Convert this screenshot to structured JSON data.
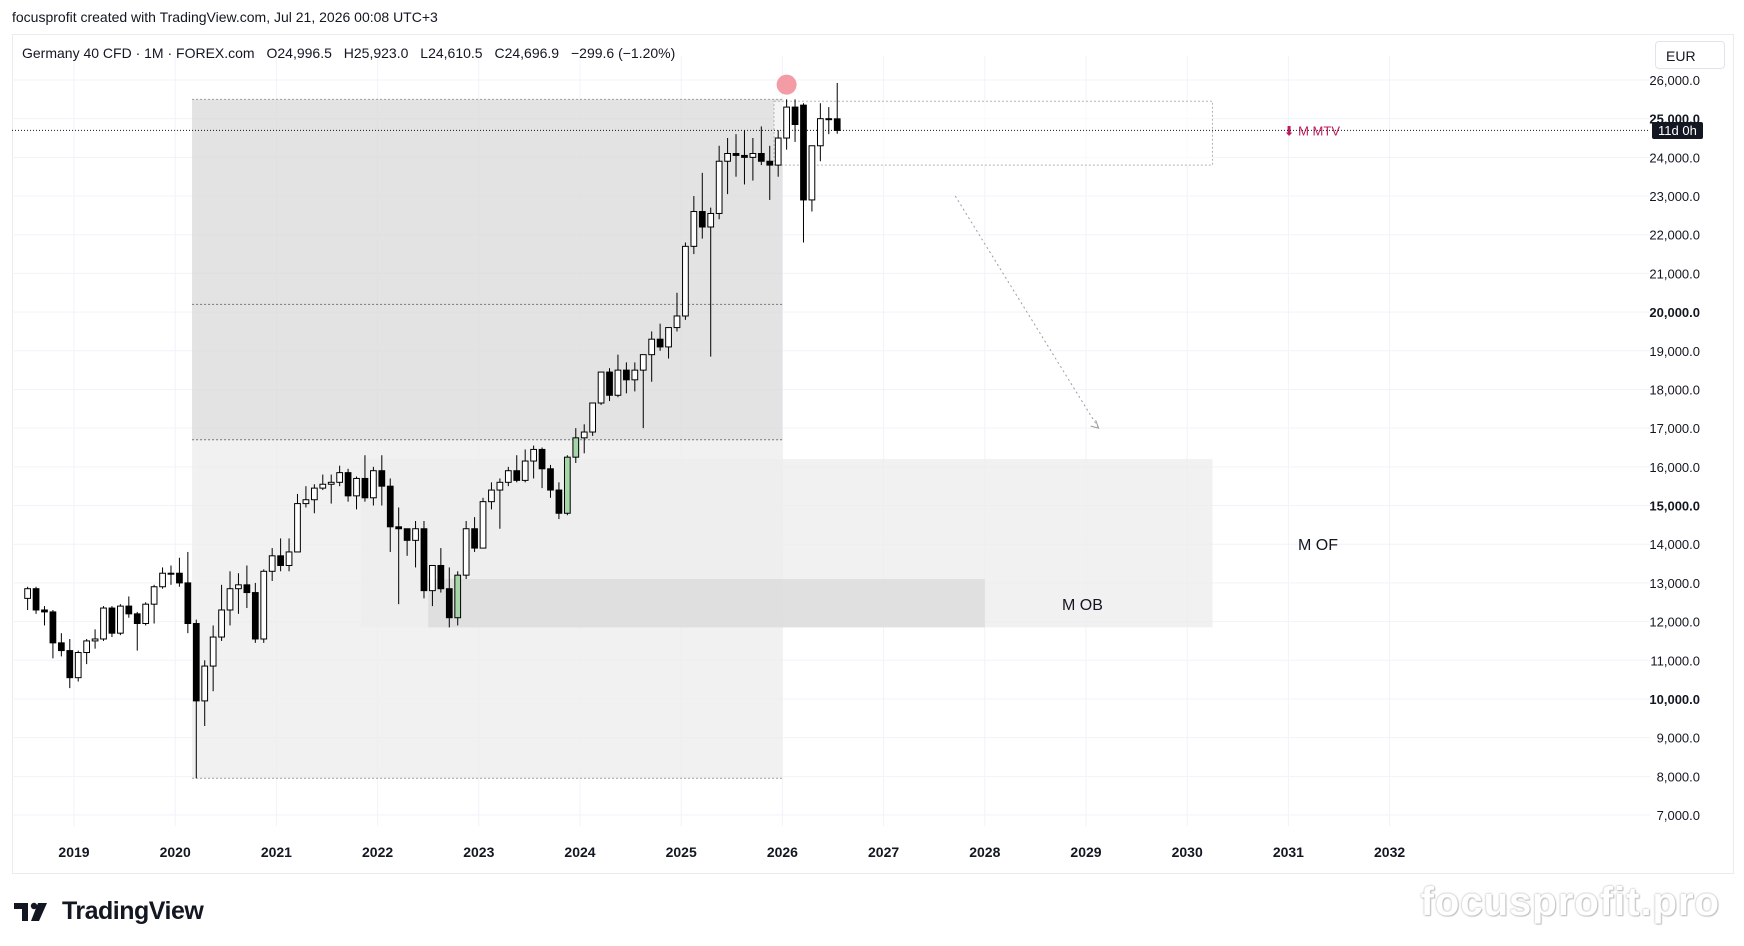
{
  "header": {
    "attribution": "focusprofit created with TradingView.com, Jul 21, 2026 00:08 UTC+3"
  },
  "legend": {
    "symbol": "Germany 40 CFD · 1M · FOREX.com",
    "open_prefix": "O",
    "open": "24,996.5",
    "high_prefix": "H",
    "high": "25,923.0",
    "low_prefix": "L",
    "low": "24,610.5",
    "close_prefix": "C",
    "close": "24,696.9",
    "change": "−299.6 (−1.20%)"
  },
  "currency_button": {
    "label": "EUR"
  },
  "countdown": {
    "label": "11d 0h"
  },
  "branding": {
    "logo_text": "TradingView",
    "watermark": "focusprofit.pro"
  },
  "colors": {
    "up_body": "#ffffff",
    "down_body": "#000000",
    "candle_border": "#000000",
    "zone_dark": "#d9d9d9",
    "zone_light": "#ececec",
    "mtv_label": "#c2185b",
    "marker": "#f28b95",
    "grid": "#f0f3fa"
  },
  "chart_data": {
    "type": "candlestick",
    "timeframe": "1M",
    "x_tick_labels": [
      "2019",
      "2020",
      "2021",
      "2022",
      "2023",
      "2024",
      "2025",
      "2026",
      "2027",
      "2028",
      "2029",
      "2030",
      "2031",
      "2032"
    ],
    "y_tick_labels": [
      "26,000.0",
      "25,000.0",
      "24,000.0",
      "23,000.0",
      "22,000.0",
      "21,000.0",
      "20,000.0",
      "19,000.0",
      "18,000.0",
      "17,000.0",
      "16,000.0",
      "15,000.0",
      "14,000.0",
      "13,000.0",
      "12,000.0",
      "11,000.0",
      "10,000.0",
      "9,000.0",
      "8,000.0",
      "7,000.0"
    ],
    "y_bold_labels": [
      "25,000.0",
      "20,000.0",
      "15,000.0",
      "10,000.0"
    ],
    "ylim": [
      6500,
      26200
    ],
    "xlim": [
      "2018-06",
      "2033-06"
    ],
    "current_price": 24696.9,
    "candles": [
      {
        "t": "2018-07",
        "o": 12600,
        "h": 12900,
        "l": 12300,
        "c": 12850
      },
      {
        "t": "2018-08",
        "o": 12850,
        "h": 12900,
        "l": 12200,
        "c": 12300
      },
      {
        "t": "2018-09",
        "o": 12300,
        "h": 12400,
        "l": 11900,
        "c": 12250
      },
      {
        "t": "2018-10",
        "o": 12250,
        "h": 12300,
        "l": 11050,
        "c": 11450
      },
      {
        "t": "2018-11",
        "o": 11450,
        "h": 11700,
        "l": 11100,
        "c": 11250
      },
      {
        "t": "2018-12",
        "o": 11250,
        "h": 11550,
        "l": 10280,
        "c": 10550
      },
      {
        "t": "2019-01",
        "o": 10550,
        "h": 11250,
        "l": 10450,
        "c": 11200
      },
      {
        "t": "2019-02",
        "o": 11200,
        "h": 11550,
        "l": 10900,
        "c": 11500
      },
      {
        "t": "2019-03",
        "o": 11500,
        "h": 11800,
        "l": 11300,
        "c": 11550
      },
      {
        "t": "2019-04",
        "o": 11550,
        "h": 12400,
        "l": 11500,
        "c": 12350
      },
      {
        "t": "2019-05",
        "o": 12350,
        "h": 12400,
        "l": 11600,
        "c": 11700
      },
      {
        "t": "2019-06",
        "o": 11700,
        "h": 12450,
        "l": 11650,
        "c": 12400
      },
      {
        "t": "2019-07",
        "o": 12400,
        "h": 12650,
        "l": 12100,
        "c": 12200
      },
      {
        "t": "2019-08",
        "o": 12200,
        "h": 12250,
        "l": 11250,
        "c": 11950
      },
      {
        "t": "2019-09",
        "o": 11950,
        "h": 12500,
        "l": 11900,
        "c": 12450
      },
      {
        "t": "2019-10",
        "o": 12450,
        "h": 12950,
        "l": 11950,
        "c": 12900
      },
      {
        "t": "2019-11",
        "o": 12900,
        "h": 13400,
        "l": 12850,
        "c": 13250
      },
      {
        "t": "2019-12",
        "o": 13250,
        "h": 13450,
        "l": 12950,
        "c": 13250
      },
      {
        "t": "2020-01",
        "o": 13250,
        "h": 13650,
        "l": 12900,
        "c": 13000
      },
      {
        "t": "2020-02",
        "o": 13000,
        "h": 13800,
        "l": 11700,
        "c": 11950
      },
      {
        "t": "2020-03",
        "o": 11950,
        "h": 12050,
        "l": 7950,
        "c": 9950
      },
      {
        "t": "2020-04",
        "o": 9950,
        "h": 11000,
        "l": 9300,
        "c": 10850
      },
      {
        "t": "2020-05",
        "o": 10850,
        "h": 11900,
        "l": 10200,
        "c": 11600
      },
      {
        "t": "2020-06",
        "o": 11600,
        "h": 12950,
        "l": 11500,
        "c": 12300
      },
      {
        "t": "2020-07",
        "o": 12300,
        "h": 13300,
        "l": 11900,
        "c": 12850
      },
      {
        "t": "2020-08",
        "o": 12850,
        "h": 13250,
        "l": 12200,
        "c": 12950
      },
      {
        "t": "2020-09",
        "o": 12950,
        "h": 13450,
        "l": 12350,
        "c": 12750
      },
      {
        "t": "2020-10",
        "o": 12750,
        "h": 13000,
        "l": 11450,
        "c": 11550
      },
      {
        "t": "2020-11",
        "o": 11550,
        "h": 13350,
        "l": 11450,
        "c": 13300
      },
      {
        "t": "2020-12",
        "o": 13300,
        "h": 13900,
        "l": 13050,
        "c": 13700
      },
      {
        "t": "2021-01",
        "o": 13700,
        "h": 14150,
        "l": 13300,
        "c": 13450
      },
      {
        "t": "2021-02",
        "o": 13450,
        "h": 14150,
        "l": 13300,
        "c": 13800
      },
      {
        "t": "2021-03",
        "o": 13800,
        "h": 15300,
        "l": 13800,
        "c": 15050
      },
      {
        "t": "2021-04",
        "o": 15050,
        "h": 15500,
        "l": 14950,
        "c": 15150
      },
      {
        "t": "2021-05",
        "o": 15150,
        "h": 15550,
        "l": 14800,
        "c": 15450
      },
      {
        "t": "2021-06",
        "o": 15450,
        "h": 15800,
        "l": 15400,
        "c": 15550
      },
      {
        "t": "2021-07",
        "o": 15550,
        "h": 15800,
        "l": 15050,
        "c": 15600
      },
      {
        "t": "2021-08",
        "o": 15600,
        "h": 16030,
        "l": 15500,
        "c": 15850
      },
      {
        "t": "2021-09",
        "o": 15850,
        "h": 15950,
        "l": 15100,
        "c": 15250
      },
      {
        "t": "2021-10",
        "o": 15250,
        "h": 15750,
        "l": 14900,
        "c": 15700
      },
      {
        "t": "2021-11",
        "o": 15700,
        "h": 16300,
        "l": 15100,
        "c": 15200
      },
      {
        "t": "2021-12",
        "o": 15200,
        "h": 16000,
        "l": 15000,
        "c": 15900
      },
      {
        "t": "2022-01",
        "o": 15900,
        "h": 16300,
        "l": 15000,
        "c": 15500
      },
      {
        "t": "2022-02",
        "o": 15500,
        "h": 15700,
        "l": 13800,
        "c": 14450
      },
      {
        "t": "2022-03",
        "o": 14450,
        "h": 14950,
        "l": 12450,
        "c": 14400
      },
      {
        "t": "2022-04",
        "o": 14400,
        "h": 14400,
        "l": 13700,
        "c": 14100
      },
      {
        "t": "2022-05",
        "o": 14100,
        "h": 14600,
        "l": 13400,
        "c": 14400
      },
      {
        "t": "2022-06",
        "o": 14400,
        "h": 14600,
        "l": 12600,
        "c": 12800
      },
      {
        "t": "2022-07",
        "o": 12800,
        "h": 13400,
        "l": 12400,
        "c": 13450
      },
      {
        "t": "2022-08",
        "o": 13450,
        "h": 13900,
        "l": 12750,
        "c": 12850
      },
      {
        "t": "2022-09",
        "o": 12850,
        "h": 13400,
        "l": 11850,
        "c": 12100
      },
      {
        "t": "2022-10",
        "o": 12100,
        "h": 13300,
        "l": 11900,
        "c": 13200
      },
      {
        "t": "2022-11",
        "o": 13200,
        "h": 14600,
        "l": 13100,
        "c": 14400
      },
      {
        "t": "2022-12",
        "o": 14400,
        "h": 14700,
        "l": 13800,
        "c": 13900
      },
      {
        "t": "2023-01",
        "o": 13900,
        "h": 15200,
        "l": 13900,
        "c": 15100
      },
      {
        "t": "2023-02",
        "o": 15100,
        "h": 15600,
        "l": 14900,
        "c": 15400
      },
      {
        "t": "2023-03",
        "o": 15400,
        "h": 15700,
        "l": 14400,
        "c": 15600
      },
      {
        "t": "2023-04",
        "o": 15600,
        "h": 16000,
        "l": 15500,
        "c": 15900
      },
      {
        "t": "2023-05",
        "o": 15900,
        "h": 16300,
        "l": 15600,
        "c": 15650
      },
      {
        "t": "2023-06",
        "o": 15650,
        "h": 16450,
        "l": 15600,
        "c": 16150
      },
      {
        "t": "2023-07",
        "o": 16150,
        "h": 16550,
        "l": 15700,
        "c": 16450
      },
      {
        "t": "2023-08",
        "o": 16450,
        "h": 16500,
        "l": 15450,
        "c": 15950
      },
      {
        "t": "2023-09",
        "o": 15950,
        "h": 16050,
        "l": 15200,
        "c": 15400
      },
      {
        "t": "2023-10",
        "o": 15400,
        "h": 15600,
        "l": 14650,
        "c": 14800
      },
      {
        "t": "2023-11",
        "o": 14800,
        "h": 16300,
        "l": 14750,
        "c": 16250
      },
      {
        "t": "2023-12",
        "o": 16250,
        "h": 17000,
        "l": 16100,
        "c": 16750
      },
      {
        "t": "2024-01",
        "o": 16750,
        "h": 17100,
        "l": 16350,
        "c": 16900
      },
      {
        "t": "2024-02",
        "o": 16900,
        "h": 17500,
        "l": 16800,
        "c": 17650
      },
      {
        "t": "2024-03",
        "o": 17650,
        "h": 18400,
        "l": 17600,
        "c": 18450
      },
      {
        "t": "2024-04",
        "o": 18450,
        "h": 18550,
        "l": 17700,
        "c": 17850
      },
      {
        "t": "2024-05",
        "o": 17850,
        "h": 18900,
        "l": 17800,
        "c": 18500
      },
      {
        "t": "2024-06",
        "o": 18500,
        "h": 18700,
        "l": 17900,
        "c": 18250
      },
      {
        "t": "2024-07",
        "o": 18250,
        "h": 18700,
        "l": 17950,
        "c": 18500
      },
      {
        "t": "2024-08",
        "o": 18500,
        "h": 18900,
        "l": 17000,
        "c": 18900
      },
      {
        "t": "2024-09",
        "o": 18900,
        "h": 19500,
        "l": 18200,
        "c": 19300
      },
      {
        "t": "2024-10",
        "o": 19300,
        "h": 19700,
        "l": 19000,
        "c": 19100
      },
      {
        "t": "2024-11",
        "o": 19100,
        "h": 19600,
        "l": 18800,
        "c": 19600
      },
      {
        "t": "2024-12",
        "o": 19600,
        "h": 20500,
        "l": 19500,
        "c": 19900
      },
      {
        "t": "2025-01",
        "o": 19900,
        "h": 21800,
        "l": 19800,
        "c": 21700
      },
      {
        "t": "2025-02",
        "o": 21700,
        "h": 23000,
        "l": 21500,
        "c": 22600
      },
      {
        "t": "2025-03",
        "o": 22600,
        "h": 23600,
        "l": 21900,
        "c": 22200
      },
      {
        "t": "2025-04",
        "o": 22200,
        "h": 22700,
        "l": 18850,
        "c": 22550
      },
      {
        "t": "2025-05",
        "o": 22550,
        "h": 24300,
        "l": 22400,
        "c": 23900
      },
      {
        "t": "2025-06",
        "o": 23900,
        "h": 24500,
        "l": 23050,
        "c": 24100
      },
      {
        "t": "2025-07",
        "o": 24100,
        "h": 24600,
        "l": 23500,
        "c": 24050
      },
      {
        "t": "2025-08",
        "o": 24050,
        "h": 24700,
        "l": 23300,
        "c": 24000
      },
      {
        "t": "2025-09",
        "o": 24000,
        "h": 24500,
        "l": 23400,
        "c": 24100
      },
      {
        "t": "2025-10",
        "o": 24100,
        "h": 24800,
        "l": 23800,
        "c": 23900
      },
      {
        "t": "2025-11",
        "o": 23900,
        "h": 24300,
        "l": 22900,
        "c": 23800
      },
      {
        "t": "2025-12",
        "o": 23800,
        "h": 24700,
        "l": 23500,
        "c": 24500
      },
      {
        "t": "2026-01",
        "o": 24500,
        "h": 25500,
        "l": 24200,
        "c": 25300
      },
      {
        "t": "2026-02",
        "o": 25300,
        "h": 25500,
        "l": 24400,
        "c": 24850
      },
      {
        "t": "2026-03",
        "o": 25350,
        "h": 25400,
        "l": 21800,
        "c": 22900
      },
      {
        "t": "2026-04",
        "o": 22900,
        "h": 24300,
        "l": 22600,
        "c": 24300
      },
      {
        "t": "2026-05",
        "o": 24300,
        "h": 25400,
        "l": 23900,
        "c": 25000
      },
      {
        "t": "2026-06",
        "o": 25000,
        "h": 25300,
        "l": 24600,
        "c": 24996.5
      },
      {
        "t": "2026-07",
        "o": 24996.5,
        "h": 25923.0,
        "l": 24610.5,
        "c": 24696.9
      }
    ],
    "green_highlight_months": [
      "2022-10",
      "2023-11",
      "2023-12"
    ],
    "zones": [
      {
        "kind": "large-upper",
        "x0": "2020-03",
        "x1": "2026-01",
        "y0": 16700,
        "y1": 25500,
        "style": "dark",
        "midline": 20200
      },
      {
        "kind": "large-lower",
        "x0": "2020-03",
        "x1": "2026-01",
        "y0": 7950,
        "y1": 16700,
        "style": "light"
      },
      {
        "kind": "M OF",
        "x0": "2021-11",
        "x1": "2030-04",
        "y0": 11850,
        "y1": 16200,
        "style": "light",
        "label": "M OF"
      },
      {
        "kind": "M OB",
        "x0": "2022-07",
        "x1": "2028-01",
        "y0": 11850,
        "y1": 13100,
        "style": "dark",
        "label": "M OB"
      },
      {
        "kind": "M MTV",
        "x0": "2025-12",
        "x1": "2030-04",
        "y0": 23800,
        "y1": 25450,
        "style": "dashed",
        "label": "⬇ M MTV"
      }
    ],
    "projection_arrow": {
      "from": {
        "t": "2027-09",
        "y": 23000
      },
      "to": {
        "t": "2029-02",
        "y": 17000
      }
    },
    "marker": {
      "t": "2026-01",
      "y": 25880
    }
  }
}
